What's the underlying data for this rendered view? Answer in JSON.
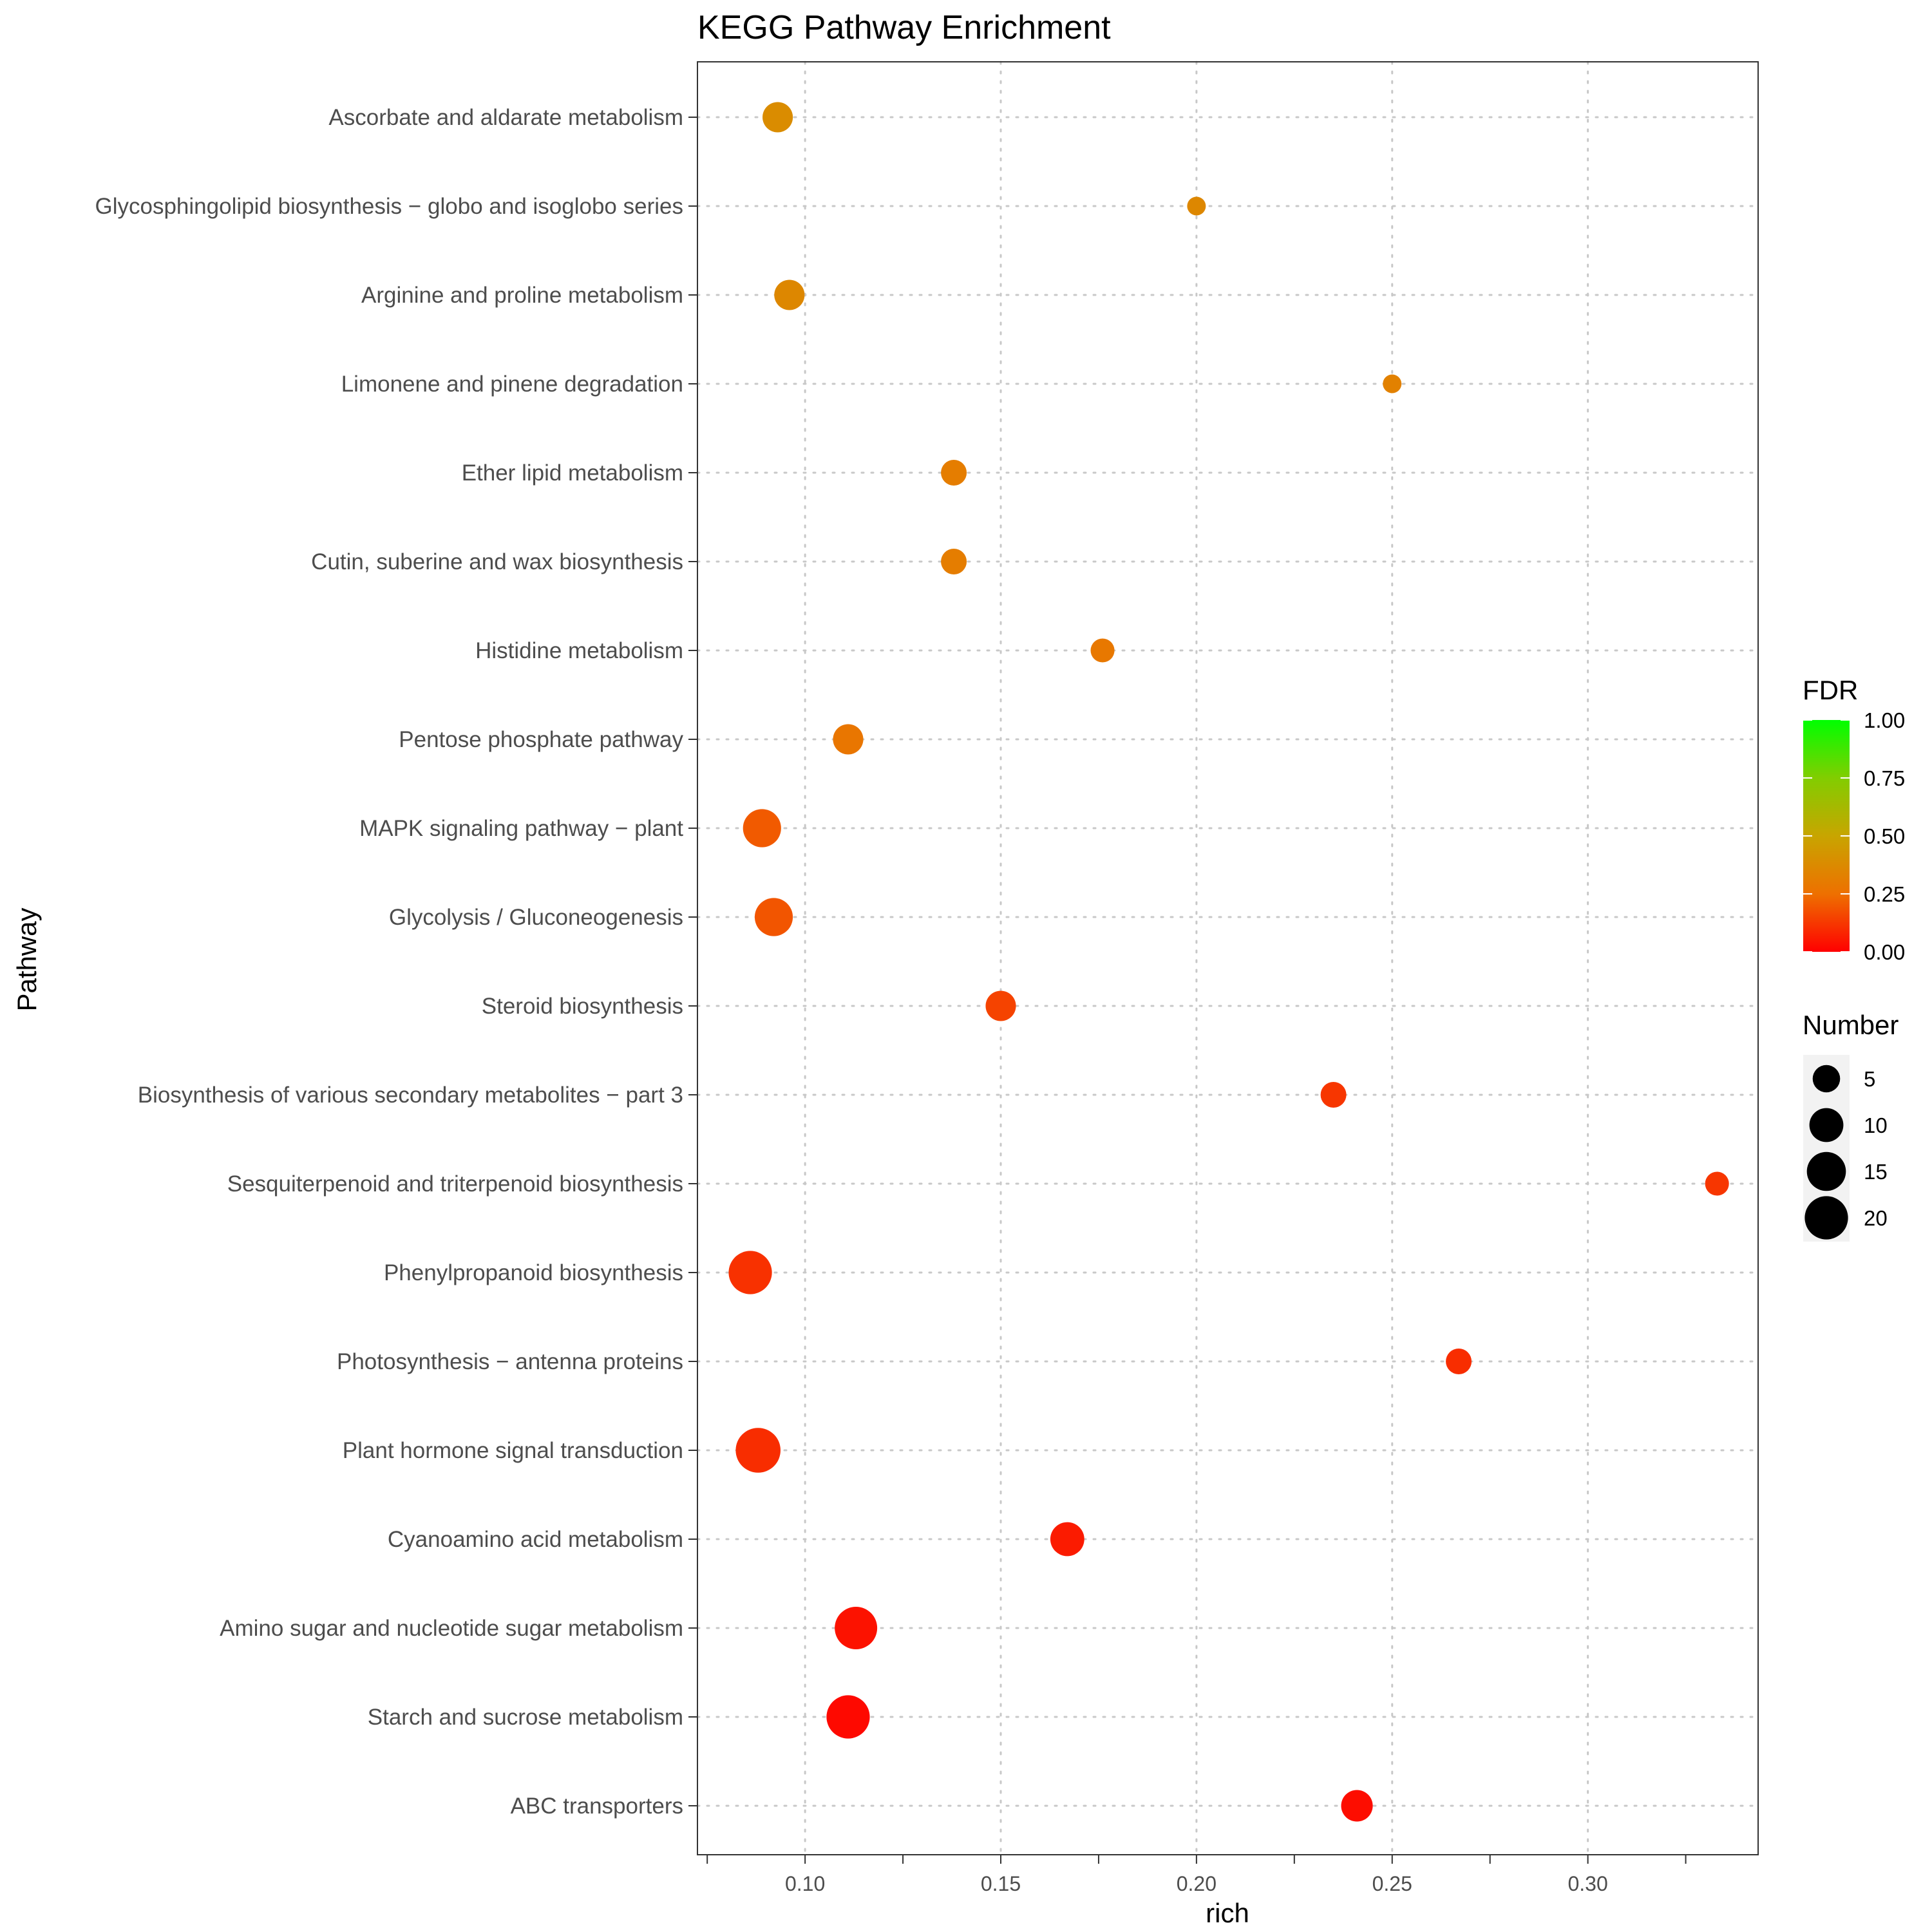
{
  "chart_data": {
    "type": "scatter",
    "title": "KEGG Pathway Enrichment",
    "xlabel": "rich",
    "ylabel": "Pathway",
    "xlim": [
      0.0725,
      0.3435
    ],
    "xticks": [
      0.1,
      0.15,
      0.2,
      0.25,
      0.3
    ],
    "xtick_labels": [
      "0.10",
      "0.15",
      "0.20",
      "0.25",
      "0.30"
    ],
    "grid": true,
    "categories": [
      "Ascorbate and aldarate metabolism",
      "Glycosphingolipid biosynthesis − globo and isoglobo series",
      "Arginine and proline metabolism",
      "Limonene and pinene degradation",
      "Ether lipid metabolism",
      "Cutin, suberine and wax biosynthesis",
      "Histidine metabolism",
      "Pentose phosphate pathway",
      "MAPK signaling pathway − plant",
      "Glycolysis / Gluconeogenesis",
      "Steroid biosynthesis",
      "Biosynthesis of various secondary metabolites − part 3",
      "Sesquiterpenoid and triterpenoid biosynthesis",
      "Phenylpropanoid biosynthesis",
      "Photosynthesis − antenna proteins",
      "Plant hormone signal transduction",
      "Cyanoamino acid metabolism",
      "Amino sugar and nucleotide sugar metabolism",
      "Starch and sucrose metabolism",
      "ABC transporters"
    ],
    "points": [
      {
        "pathway": "Ascorbate and aldarate metabolism",
        "rich": 0.093,
        "number": 7,
        "fdr": 0.38
      },
      {
        "pathway": "Glycosphingolipid biosynthesis − globo and isoglobo series",
        "rich": 0.2,
        "number": 1,
        "fdr": 0.36
      },
      {
        "pathway": "Arginine and proline metabolism",
        "rich": 0.096,
        "number": 7,
        "fdr": 0.36
      },
      {
        "pathway": "Limonene and pinene degradation",
        "rich": 0.25,
        "number": 1,
        "fdr": 0.33
      },
      {
        "pathway": "Ether lipid metabolism",
        "rich": 0.138,
        "number": 4,
        "fdr": 0.31
      },
      {
        "pathway": "Cutin, suberine and wax biosynthesis",
        "rich": 0.138,
        "number": 4,
        "fdr": 0.31
      },
      {
        "pathway": "Histidine metabolism",
        "rich": 0.176,
        "number": 3,
        "fdr": 0.29
      },
      {
        "pathway": "Pentose phosphate pathway",
        "rich": 0.111,
        "number": 7,
        "fdr": 0.28
      },
      {
        "pathway": "MAPK signaling pathway − plant",
        "rich": 0.089,
        "number": 14,
        "fdr": 0.2
      },
      {
        "pathway": "Glycolysis / Gluconeogenesis",
        "rich": 0.092,
        "number": 14,
        "fdr": 0.19
      },
      {
        "pathway": "Steroid biosynthesis",
        "rich": 0.15,
        "number": 7,
        "fdr": 0.15
      },
      {
        "pathway": "Biosynthesis of various secondary metabolites − part 3",
        "rich": 0.235,
        "number": 4,
        "fdr": 0.12
      },
      {
        "pathway": "Sesquiterpenoid and triterpenoid biosynthesis",
        "rich": 0.333,
        "number": 3,
        "fdr": 0.12
      },
      {
        "pathway": "Phenylpropanoid biosynthesis",
        "rich": 0.086,
        "number": 20,
        "fdr": 0.11
      },
      {
        "pathway": "Photosynthesis − antenna proteins",
        "rich": 0.267,
        "number": 4,
        "fdr": 0.1
      },
      {
        "pathway": "Plant hormone signal transduction",
        "rich": 0.088,
        "number": 22,
        "fdr": 0.1
      },
      {
        "pathway": "Cyanoamino acid metabolism",
        "rich": 0.167,
        "number": 10,
        "fdr": 0.06
      },
      {
        "pathway": "Amino sugar and nucleotide sugar metabolism",
        "rich": 0.113,
        "number": 19,
        "fdr": 0.04
      },
      {
        "pathway": "Starch and sucrose metabolism",
        "rich": 0.111,
        "number": 20,
        "fdr": 0.02
      },
      {
        "pathway": "ABC transporters",
        "rich": 0.241,
        "number": 8,
        "fdr": 0.03
      }
    ],
    "color_legend": {
      "title": "FDR",
      "min": 0.0,
      "max": 1.0,
      "low_color": "#ff0000",
      "high_color": "#00ff00",
      "ticks": [
        0.0,
        0.25,
        0.5,
        0.75,
        1.0
      ],
      "tick_labels": [
        "0.00",
        "0.25",
        "0.50",
        "0.75",
        "1.00"
      ]
    },
    "size_legend": {
      "title": "Number",
      "values": [
        5,
        10,
        15,
        20
      ],
      "labels": [
        "5",
        "10",
        "15",
        "20"
      ]
    },
    "legend_position": "right"
  }
}
